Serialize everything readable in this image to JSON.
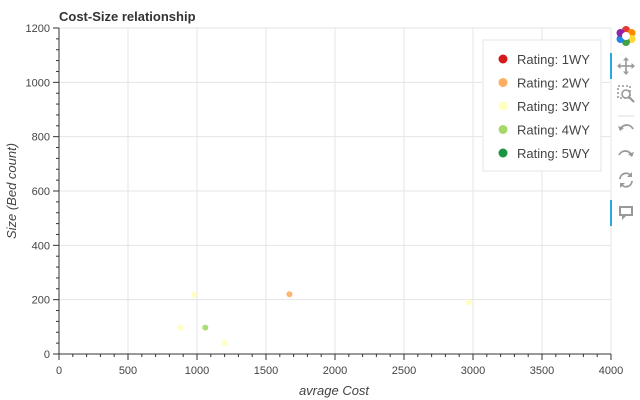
{
  "chart_data": {
    "type": "scatter",
    "title": "Cost-Size relationship",
    "xlabel": "avrage Cost",
    "ylabel": "Size (Bed count)",
    "xlim": [
      0,
      4000
    ],
    "ylim": [
      0,
      1200
    ],
    "x_ticks": [
      0,
      500,
      1000,
      1500,
      2000,
      2500,
      3000,
      3500,
      4000
    ],
    "y_ticks": [
      0,
      200,
      400,
      600,
      800,
      1000,
      1200
    ],
    "grid": true,
    "legend_position": "top-right",
    "series": [
      {
        "name": "Rating: 1WY",
        "color": "#d7191c",
        "points": []
      },
      {
        "name": "Rating: 2WY",
        "color": "#fdae61",
        "points": [
          [
            1670,
            220
          ]
        ]
      },
      {
        "name": "Rating: 3WY",
        "color": "#ffffbf",
        "points": [
          [
            880,
            97
          ],
          [
            980,
            218
          ],
          [
            1200,
            40
          ],
          [
            2970,
            190
          ]
        ]
      },
      {
        "name": "Rating: 4WY",
        "color": "#a6d96a",
        "points": [
          [
            1060,
            97
          ]
        ]
      },
      {
        "name": "Rating: 5WY",
        "color": "#1a9641",
        "points": []
      }
    ]
  },
  "toolbar": {
    "tools": [
      {
        "name": "bokeh-logo-icon",
        "interactable": false
      },
      {
        "name": "pan-tool-icon",
        "interactable": true,
        "active": true
      },
      {
        "name": "box-zoom-tool-icon",
        "interactable": true
      },
      {
        "name": "undo-tool-icon",
        "interactable": true
      },
      {
        "name": "redo-tool-icon",
        "interactable": true
      },
      {
        "name": "reset-tool-icon",
        "interactable": true
      },
      {
        "name": "hover-tool-icon",
        "interactable": true,
        "active": true
      }
    ]
  }
}
